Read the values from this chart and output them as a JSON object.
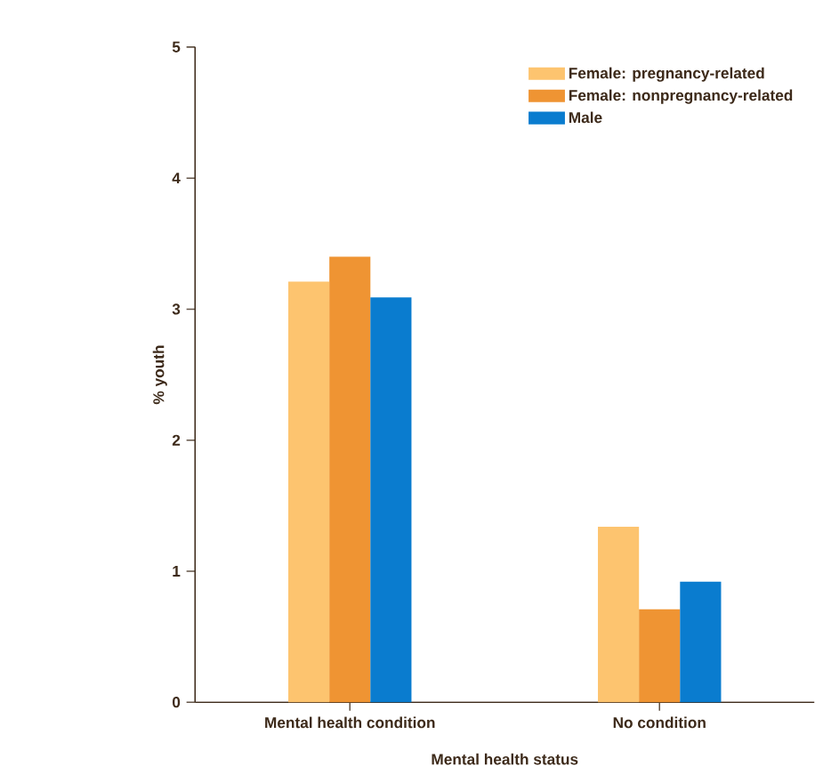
{
  "chart_data": {
    "type": "bar",
    "xlabel": "Mental health status",
    "ylabel": "% youth",
    "categories": [
      "Mental health condition",
      "No condition"
    ],
    "series": [
      {
        "name": "Female: pregnancy-related",
        "color": "#fdc46f",
        "values": [
          3.21,
          1.34
        ]
      },
      {
        "name": "Female: nonpregnancy-related",
        "color": "#ef9433",
        "values": [
          3.4,
          0.71
        ]
      },
      {
        "name": "Male",
        "color": "#0a7ccf",
        "values": [
          3.09,
          0.92
        ]
      }
    ],
    "ylim": [
      0,
      5
    ],
    "yticks": [
      0,
      1,
      2,
      3,
      4,
      5
    ],
    "grid": false,
    "legend": "top right"
  }
}
